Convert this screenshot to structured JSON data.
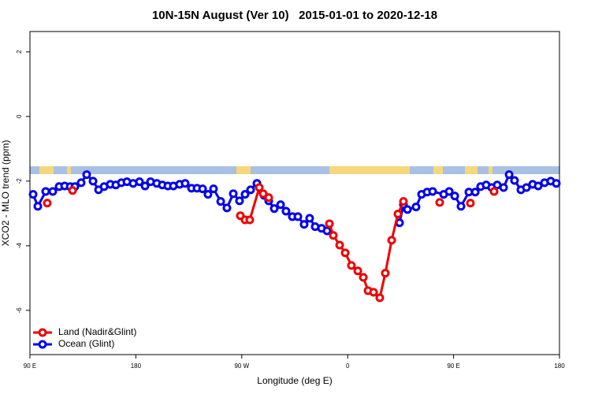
{
  "chart_data": {
    "type": "line",
    "title": "10N-15N August (Ver 10)   2015-01-01 to 2020-12-18",
    "xlabel": "Longitude (deg E)",
    "ylabel": "XCO2 - MLO trend (ppm)",
    "xlim": [
      90,
      540
    ],
    "ylim": [
      -7.37,
      2.63
    ],
    "xticks": [
      {
        "value": 90,
        "label": "90 E"
      },
      180,
      {
        "value": 270,
        "label": "90 W"
      },
      {
        "value": 360,
        "label": "0"
      },
      {
        "value": 450,
        "label": "90 E"
      },
      {
        "value": 540,
        "label": "180"
      }
    ],
    "yticks": [
      -6,
      -4,
      -2,
      0,
      2
    ],
    "legend": "bottom-left",
    "series": [
      {
        "name": "Ocean (Glint)",
        "color": "#0000ee",
        "x": [
          92.7,
          96.7,
          103.4,
          109.4,
          114.8,
          119.5,
          124.2,
          128.2,
          133.5,
          138.2,
          143.6,
          148.3,
          153.0,
          158.3,
          163.0,
          167.7,
          172.4,
          177.7,
          183.1,
          187.8,
          192.5,
          197.8,
          202.5,
          207.2,
          211.9,
          217.2,
          221.9,
          227.3,
          232.0,
          236.7,
          241.3,
          246.0,
          252.1,
          257.4,
          262.8,
          268.1,
          272.8,
          277.5,
          282.9,
          288.9,
          292.9,
          297.6,
          303.0,
          307.6,
          313.0,
          317.7,
          323.0,
          327.7,
          332.4,
          337.8,
          342.5,
          null,
          404.1,
          407.4,
          410.8,
          418.1,
          422.8,
          427.5,
          432.2,
          441.6,
          446.3,
          451.0,
          456.3,
          463.0,
          468.4,
          473.0,
          477.7,
          482.4,
          487.1,
          492.5,
          497.2,
          501.8,
          507.2,
          511.9,
          517.2,
          521.9,
          527.3,
          532.6,
          537.3
        ],
        "values": [
          -2.41,
          -2.78,
          -2.32,
          -2.32,
          -2.17,
          -2.15,
          -2.17,
          -2.17,
          -2.05,
          -1.8,
          -2.0,
          -2.27,
          -2.17,
          -2.1,
          -2.12,
          -2.05,
          -2.02,
          -2.07,
          -2.02,
          -2.15,
          -2.02,
          -2.07,
          -2.12,
          -2.15,
          -2.15,
          -2.1,
          -2.07,
          -2.22,
          -2.22,
          -2.24,
          -2.41,
          -2.24,
          -2.63,
          -2.83,
          -2.39,
          -2.61,
          -2.41,
          -2.27,
          -2.07,
          -2.44,
          -2.61,
          -2.85,
          -2.73,
          -2.93,
          -3.1,
          -3.1,
          -3.34,
          -3.15,
          -3.41,
          -3.46,
          -3.54,
          null,
          -3.29,
          -2.73,
          -2.88,
          -2.8,
          -2.41,
          -2.34,
          -2.32,
          -2.41,
          -2.32,
          -2.46,
          -2.78,
          -2.34,
          -2.34,
          -2.17,
          -2.12,
          -2.2,
          -2.12,
          -2.2,
          -1.8,
          -1.98,
          -2.27,
          -2.2,
          -2.1,
          -2.15,
          -2.05,
          -2.0,
          -2.07
        ]
      },
      {
        "name": "Land (Nadir&Glint)",
        "color": "#ee0000",
        "x": [
          104.7,
          null,
          126.2,
          null,
          268.8,
          272.8,
          276.8,
          284.9,
          288.2,
          292.9,
          null,
          344.5,
          347.8,
          353.2,
          357.9,
          363.2,
          368.6,
          373.3,
          377.3,
          382.0,
          387.3,
          392.0,
          397.4,
          402.7,
          407.4,
          null,
          438.2,
          null,
          464.3,
          null,
          484.4
        ],
        "values": [
          -2.68,
          null,
          -2.29,
          null,
          -3.07,
          -3.2,
          -3.2,
          -2.2,
          -2.39,
          -2.51,
          null,
          -3.32,
          -3.68,
          -3.98,
          -4.22,
          -4.61,
          -4.78,
          -4.98,
          -5.39,
          -5.44,
          -5.61,
          -4.85,
          -3.83,
          -3.02,
          -2.63,
          null,
          -2.66,
          null,
          -2.68,
          null,
          -2.32
        ]
      }
    ]
  }
}
